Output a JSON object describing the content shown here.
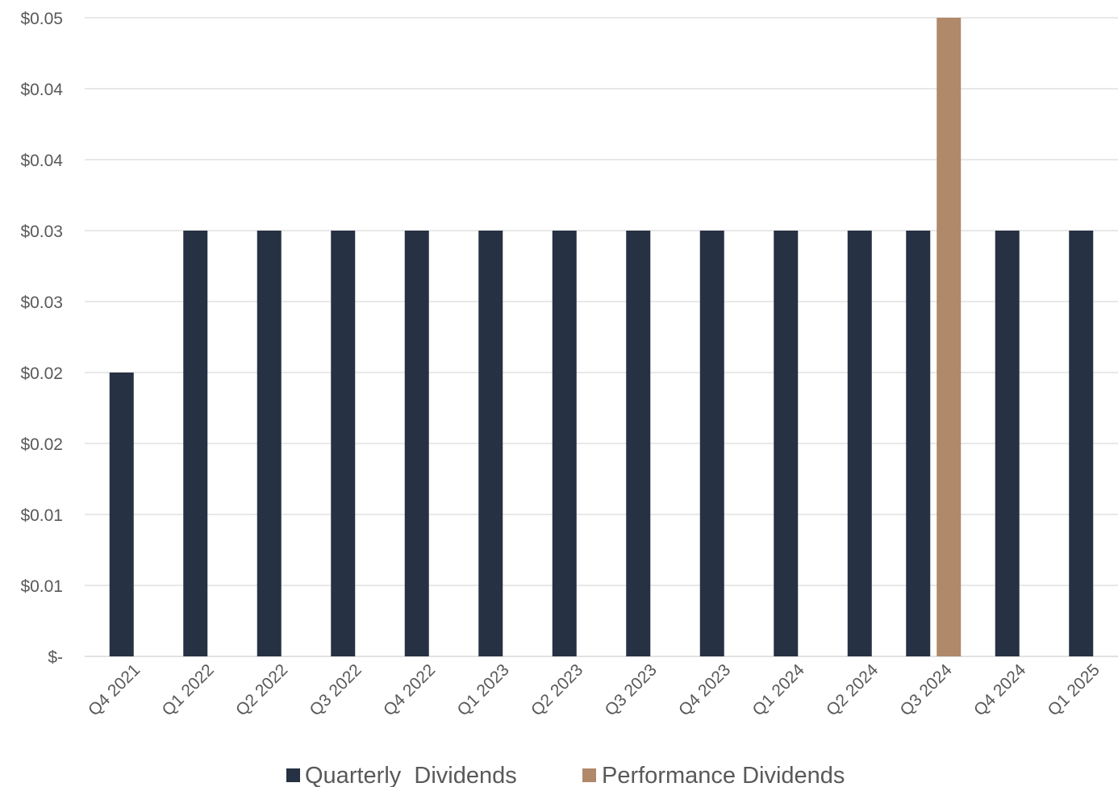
{
  "chart_data": {
    "type": "bar",
    "title": "",
    "xlabel": "",
    "ylabel": "",
    "categories": [
      "Q4 2021",
      "Q1 2022",
      "Q2 2022",
      "Q3 2022",
      "Q4 2022",
      "Q1 2023",
      "Q2 2023",
      "Q3 2023",
      "Q4 2023",
      "Q1 2024",
      "Q2 2024",
      "Q3 2024",
      "Q4 2024",
      "Q1 2025"
    ],
    "series": [
      {
        "name": "Quarterly  Dividends",
        "color": "#263143",
        "values": [
          0.02,
          0.03,
          0.03,
          0.03,
          0.03,
          0.03,
          0.03,
          0.03,
          0.03,
          0.03,
          0.03,
          0.03,
          0.03,
          0.03
        ]
      },
      {
        "name": "Performance Dividends",
        "color": "#B0896B",
        "values": [
          null,
          null,
          null,
          null,
          null,
          null,
          null,
          null,
          null,
          null,
          null,
          0.045,
          null,
          null
        ]
      }
    ],
    "ylim": [
      0,
      0.045
    ],
    "y_ticks": [
      {
        "value": 0,
        "label": "$-"
      },
      {
        "value": 0.005,
        "label": "$0.01"
      },
      {
        "value": 0.01,
        "label": "$0.01"
      },
      {
        "value": 0.015,
        "label": "$0.02"
      },
      {
        "value": 0.02,
        "label": "$0.02"
      },
      {
        "value": 0.025,
        "label": "$0.03"
      },
      {
        "value": 0.03,
        "label": "$0.03"
      },
      {
        "value": 0.035,
        "label": "$0.04"
      },
      {
        "value": 0.04,
        "label": "$0.04"
      },
      {
        "value": 0.045,
        "label": "$0.05"
      }
    ],
    "grid": true,
    "legend_position": "bottom",
    "gridline_color": "#D9D9D9",
    "text_color": "#595959"
  }
}
